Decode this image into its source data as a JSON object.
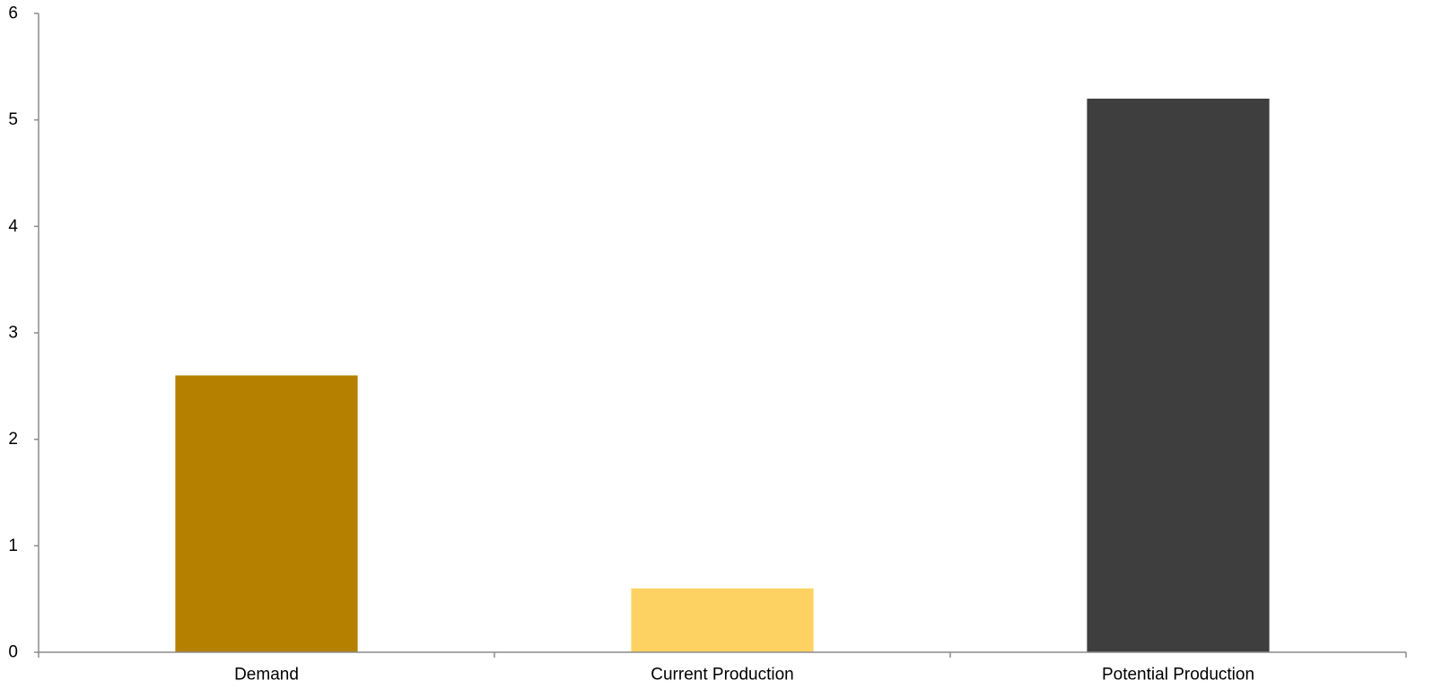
{
  "chart_data": {
    "type": "bar",
    "title": "",
    "xlabel": "",
    "ylabel": "",
    "categories": [
      "Demand",
      "Current Production",
      "Potential Production"
    ],
    "values": [
      2.6,
      0.6,
      5.2
    ],
    "colors": [
      "#b58000",
      "#fdd262",
      "#3e3e3e"
    ],
    "ylim": [
      0,
      6
    ],
    "yticks": [
      "0",
      "1",
      "2",
      "3",
      "4",
      "5",
      "6"
    ],
    "grid": false,
    "legend": "none"
  }
}
